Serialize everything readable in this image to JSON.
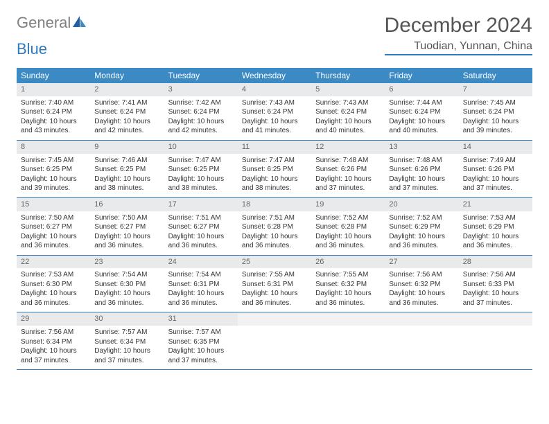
{
  "logo": {
    "text1": "General",
    "text2": "Blue"
  },
  "title": "December 2024",
  "location": "Tuodian, Yunnan, China",
  "colors": {
    "accent": "#3b8ac4",
    "rule": "#2f7abf",
    "daybg": "#e9eaeb"
  },
  "weekdays": [
    "Sunday",
    "Monday",
    "Tuesday",
    "Wednesday",
    "Thursday",
    "Friday",
    "Saturday"
  ],
  "days": [
    {
      "n": "1",
      "sr": "7:40 AM",
      "ss": "6:24 PM",
      "dl": "10 hours and 43 minutes."
    },
    {
      "n": "2",
      "sr": "7:41 AM",
      "ss": "6:24 PM",
      "dl": "10 hours and 42 minutes."
    },
    {
      "n": "3",
      "sr": "7:42 AM",
      "ss": "6:24 PM",
      "dl": "10 hours and 42 minutes."
    },
    {
      "n": "4",
      "sr": "7:43 AM",
      "ss": "6:24 PM",
      "dl": "10 hours and 41 minutes."
    },
    {
      "n": "5",
      "sr": "7:43 AM",
      "ss": "6:24 PM",
      "dl": "10 hours and 40 minutes."
    },
    {
      "n": "6",
      "sr": "7:44 AM",
      "ss": "6:24 PM",
      "dl": "10 hours and 40 minutes."
    },
    {
      "n": "7",
      "sr": "7:45 AM",
      "ss": "6:24 PM",
      "dl": "10 hours and 39 minutes."
    },
    {
      "n": "8",
      "sr": "7:45 AM",
      "ss": "6:25 PM",
      "dl": "10 hours and 39 minutes."
    },
    {
      "n": "9",
      "sr": "7:46 AM",
      "ss": "6:25 PM",
      "dl": "10 hours and 38 minutes."
    },
    {
      "n": "10",
      "sr": "7:47 AM",
      "ss": "6:25 PM",
      "dl": "10 hours and 38 minutes."
    },
    {
      "n": "11",
      "sr": "7:47 AM",
      "ss": "6:25 PM",
      "dl": "10 hours and 38 minutes."
    },
    {
      "n": "12",
      "sr": "7:48 AM",
      "ss": "6:26 PM",
      "dl": "10 hours and 37 minutes."
    },
    {
      "n": "13",
      "sr": "7:48 AM",
      "ss": "6:26 PM",
      "dl": "10 hours and 37 minutes."
    },
    {
      "n": "14",
      "sr": "7:49 AM",
      "ss": "6:26 PM",
      "dl": "10 hours and 37 minutes."
    },
    {
      "n": "15",
      "sr": "7:50 AM",
      "ss": "6:27 PM",
      "dl": "10 hours and 36 minutes."
    },
    {
      "n": "16",
      "sr": "7:50 AM",
      "ss": "6:27 PM",
      "dl": "10 hours and 36 minutes."
    },
    {
      "n": "17",
      "sr": "7:51 AM",
      "ss": "6:27 PM",
      "dl": "10 hours and 36 minutes."
    },
    {
      "n": "18",
      "sr": "7:51 AM",
      "ss": "6:28 PM",
      "dl": "10 hours and 36 minutes."
    },
    {
      "n": "19",
      "sr": "7:52 AM",
      "ss": "6:28 PM",
      "dl": "10 hours and 36 minutes."
    },
    {
      "n": "20",
      "sr": "7:52 AM",
      "ss": "6:29 PM",
      "dl": "10 hours and 36 minutes."
    },
    {
      "n": "21",
      "sr": "7:53 AM",
      "ss": "6:29 PM",
      "dl": "10 hours and 36 minutes."
    },
    {
      "n": "22",
      "sr": "7:53 AM",
      "ss": "6:30 PM",
      "dl": "10 hours and 36 minutes."
    },
    {
      "n": "23",
      "sr": "7:54 AM",
      "ss": "6:30 PM",
      "dl": "10 hours and 36 minutes."
    },
    {
      "n": "24",
      "sr": "7:54 AM",
      "ss": "6:31 PM",
      "dl": "10 hours and 36 minutes."
    },
    {
      "n": "25",
      "sr": "7:55 AM",
      "ss": "6:31 PM",
      "dl": "10 hours and 36 minutes."
    },
    {
      "n": "26",
      "sr": "7:55 AM",
      "ss": "6:32 PM",
      "dl": "10 hours and 36 minutes."
    },
    {
      "n": "27",
      "sr": "7:56 AM",
      "ss": "6:32 PM",
      "dl": "10 hours and 36 minutes."
    },
    {
      "n": "28",
      "sr": "7:56 AM",
      "ss": "6:33 PM",
      "dl": "10 hours and 37 minutes."
    },
    {
      "n": "29",
      "sr": "7:56 AM",
      "ss": "6:34 PM",
      "dl": "10 hours and 37 minutes."
    },
    {
      "n": "30",
      "sr": "7:57 AM",
      "ss": "6:34 PM",
      "dl": "10 hours and 37 minutes."
    },
    {
      "n": "31",
      "sr": "7:57 AM",
      "ss": "6:35 PM",
      "dl": "10 hours and 37 minutes."
    }
  ],
  "labels": {
    "sunrise": "Sunrise:",
    "sunset": "Sunset:",
    "daylight": "Daylight:"
  }
}
